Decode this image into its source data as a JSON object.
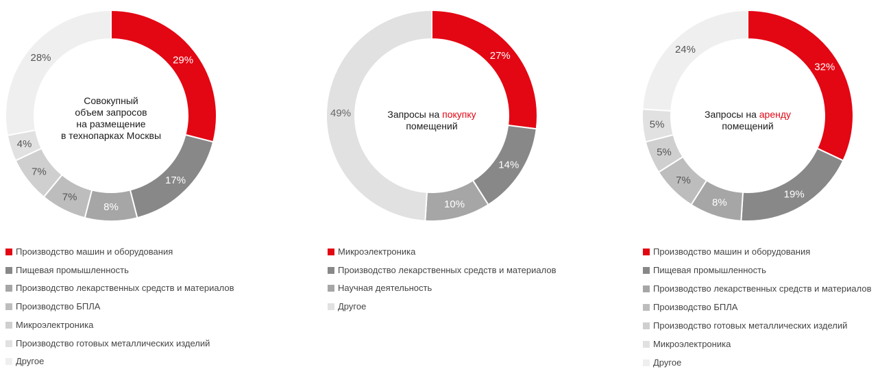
{
  "chart_data": [
    {
      "type": "pie",
      "title_lines": [
        "Совокупный",
        "объем запросов",
        "на размещение",
        "в технопарках Москвы"
      ],
      "title_prefix": "",
      "title_accent": "",
      "title_suffix_line": "",
      "categories": [
        "Производство машин и оборудования",
        "Пищевая промышленность",
        "Производство лекарственных средств и материалов",
        "Производство БПЛА",
        "Микроэлектроника",
        "Производство готовых металлических изделий",
        "Другое"
      ],
      "values": [
        29,
        17,
        8,
        7,
        7,
        4,
        28
      ],
      "labels": [
        "29%",
        "17%",
        "8%",
        "7%",
        "7%",
        "4%",
        "28%"
      ],
      "colors": [
        "#e30613",
        "#888888",
        "#a6a6a6",
        "#bdbdbd",
        "#cfcfcf",
        "#e1e1e1",
        "#efefef"
      ],
      "label_colors": [
        "#ffffff",
        "#ffffff",
        "#ffffff",
        "#555555",
        "#555555",
        "#555555",
        "#555555"
      ]
    },
    {
      "type": "pie",
      "title_lines": [],
      "title_prefix": "Запросы на ",
      "title_accent": "покупку",
      "title_suffix_line": "помещений",
      "categories": [
        "Микроэлектроника",
        "Производство лекарственных средств и материалов",
        "Научная деятельность",
        "Другое"
      ],
      "values": [
        27,
        14,
        10,
        49
      ],
      "labels": [
        "27%",
        "14%",
        "10%",
        "49%"
      ],
      "colors": [
        "#e30613",
        "#888888",
        "#a6a6a6",
        "#e1e1e1"
      ],
      "label_colors": [
        "#ffffff",
        "#ffffff",
        "#ffffff",
        "#666666"
      ]
    },
    {
      "type": "pie",
      "title_lines": [],
      "title_prefix": "Запросы на ",
      "title_accent": "аренду",
      "title_suffix_line": "помещений",
      "categories": [
        "Производство машин и оборудования",
        "Пищевая промышленность",
        "Производство лекарственных средств и материалов",
        "Производство БПЛА",
        "Производство готовых металлических изделий",
        "Микроэлектроника",
        "Другое"
      ],
      "values": [
        32,
        19,
        8,
        7,
        5,
        5,
        24
      ],
      "labels": [
        "32%",
        "19%",
        "8%",
        "7%",
        "5%",
        "5%",
        "24%"
      ],
      "colors": [
        "#e30613",
        "#888888",
        "#a6a6a6",
        "#bdbdbd",
        "#cfcfcf",
        "#e1e1e1",
        "#efefef"
      ],
      "label_colors": [
        "#ffffff",
        "#ffffff",
        "#ffffff",
        "#555555",
        "#555555",
        "#555555",
        "#555555"
      ]
    }
  ]
}
